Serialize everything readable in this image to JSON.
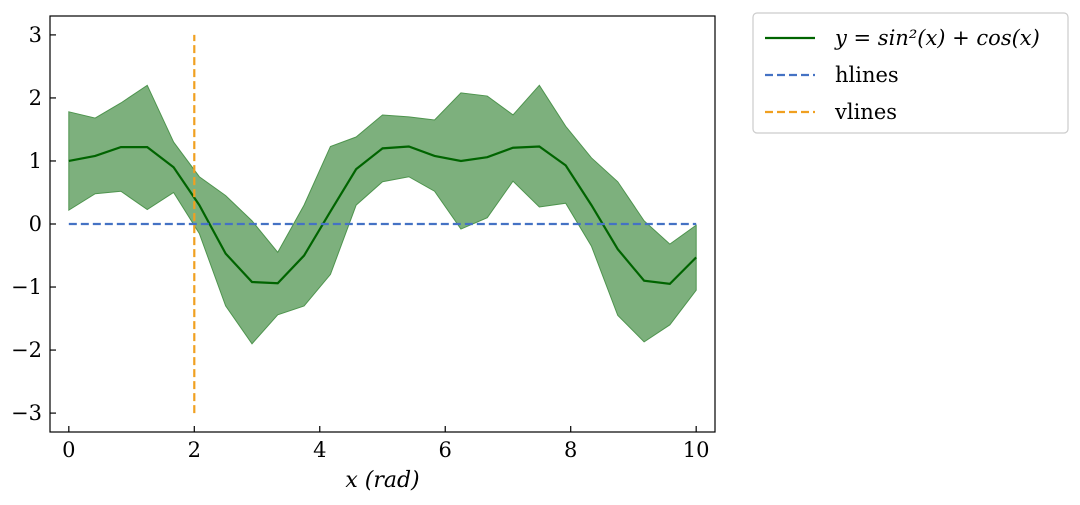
{
  "chart_data": {
    "type": "line",
    "xlabel": "x (rad)",
    "xlim": [
      -0.3,
      10.3
    ],
    "ylim": [
      -3.3,
      3.3
    ],
    "xticks": [
      0,
      2,
      4,
      6,
      8,
      10
    ],
    "yticks": [
      -3,
      -2,
      -1,
      0,
      1,
      2,
      3
    ],
    "xtick_labels": [
      "0",
      "2",
      "4",
      "6",
      "8",
      "10"
    ],
    "ytick_labels": [
      "−3",
      "−2",
      "−1",
      "0",
      "1",
      "2",
      "3"
    ],
    "grid": false,
    "legend_position": "outside-top-right",
    "series": [
      {
        "name": "y = sin²(x) + cos(x)",
        "style": "solid",
        "color": "#006400",
        "x": [
          0,
          0.42,
          0.83,
          1.25,
          1.67,
          2.08,
          2.5,
          2.92,
          3.33,
          3.75,
          4.17,
          4.58,
          5.0,
          5.42,
          5.83,
          6.25,
          6.67,
          7.08,
          7.5,
          7.92,
          8.33,
          8.75,
          9.17,
          9.58,
          10.0
        ],
        "y": [
          1.0,
          1.08,
          1.22,
          1.22,
          0.9,
          0.3,
          -0.47,
          -0.92,
          -0.94,
          -0.5,
          0.2,
          0.87,
          1.2,
          1.23,
          1.08,
          1.0,
          1.06,
          1.21,
          1.23,
          0.93,
          0.3,
          -0.4,
          -0.9,
          -0.95,
          -0.53
        ]
      },
      {
        "name": "hlines",
        "style": "dashed",
        "color": "#4472C4",
        "x": [
          0,
          10
        ],
        "y": [
          0,
          0
        ]
      },
      {
        "name": "vlines",
        "style": "dashed",
        "color": "#F0A020",
        "x": [
          2,
          2
        ],
        "y": [
          -3,
          3
        ]
      }
    ],
    "band": {
      "color": "#7DB07D",
      "edge_color": "#4E944E",
      "x": [
        0,
        0.42,
        0.83,
        1.25,
        1.67,
        2.08,
        2.5,
        2.92,
        3.33,
        3.75,
        4.17,
        4.58,
        5.0,
        5.42,
        5.83,
        6.25,
        6.67,
        7.08,
        7.5,
        7.92,
        8.33,
        8.75,
        9.17,
        9.58,
        10.0
      ],
      "upper": [
        1.78,
        1.68,
        1.92,
        2.2,
        1.3,
        0.75,
        0.45,
        0.05,
        -0.45,
        0.3,
        1.23,
        1.38,
        1.73,
        1.7,
        1.65,
        2.08,
        2.03,
        1.73,
        2.2,
        1.55,
        1.05,
        0.67,
        0.05,
        -0.32,
        -0.02
      ],
      "lower": [
        0.22,
        0.48,
        0.52,
        0.23,
        0.5,
        -0.15,
        -1.3,
        -1.9,
        -1.44,
        -1.3,
        -0.8,
        0.3,
        0.67,
        0.75,
        0.52,
        -0.08,
        0.1,
        0.68,
        0.27,
        0.33,
        -0.35,
        -1.45,
        -1.87,
        -1.6,
        -1.05
      ]
    }
  },
  "legend": {
    "items": [
      {
        "label": "y = sin²(x) + cos(x)",
        "color": "#006400",
        "style": "solid"
      },
      {
        "label": "hlines",
        "color": "#4472C4",
        "style": "dashed"
      },
      {
        "label": "vlines",
        "color": "#F0A020",
        "style": "dashed"
      }
    ]
  }
}
